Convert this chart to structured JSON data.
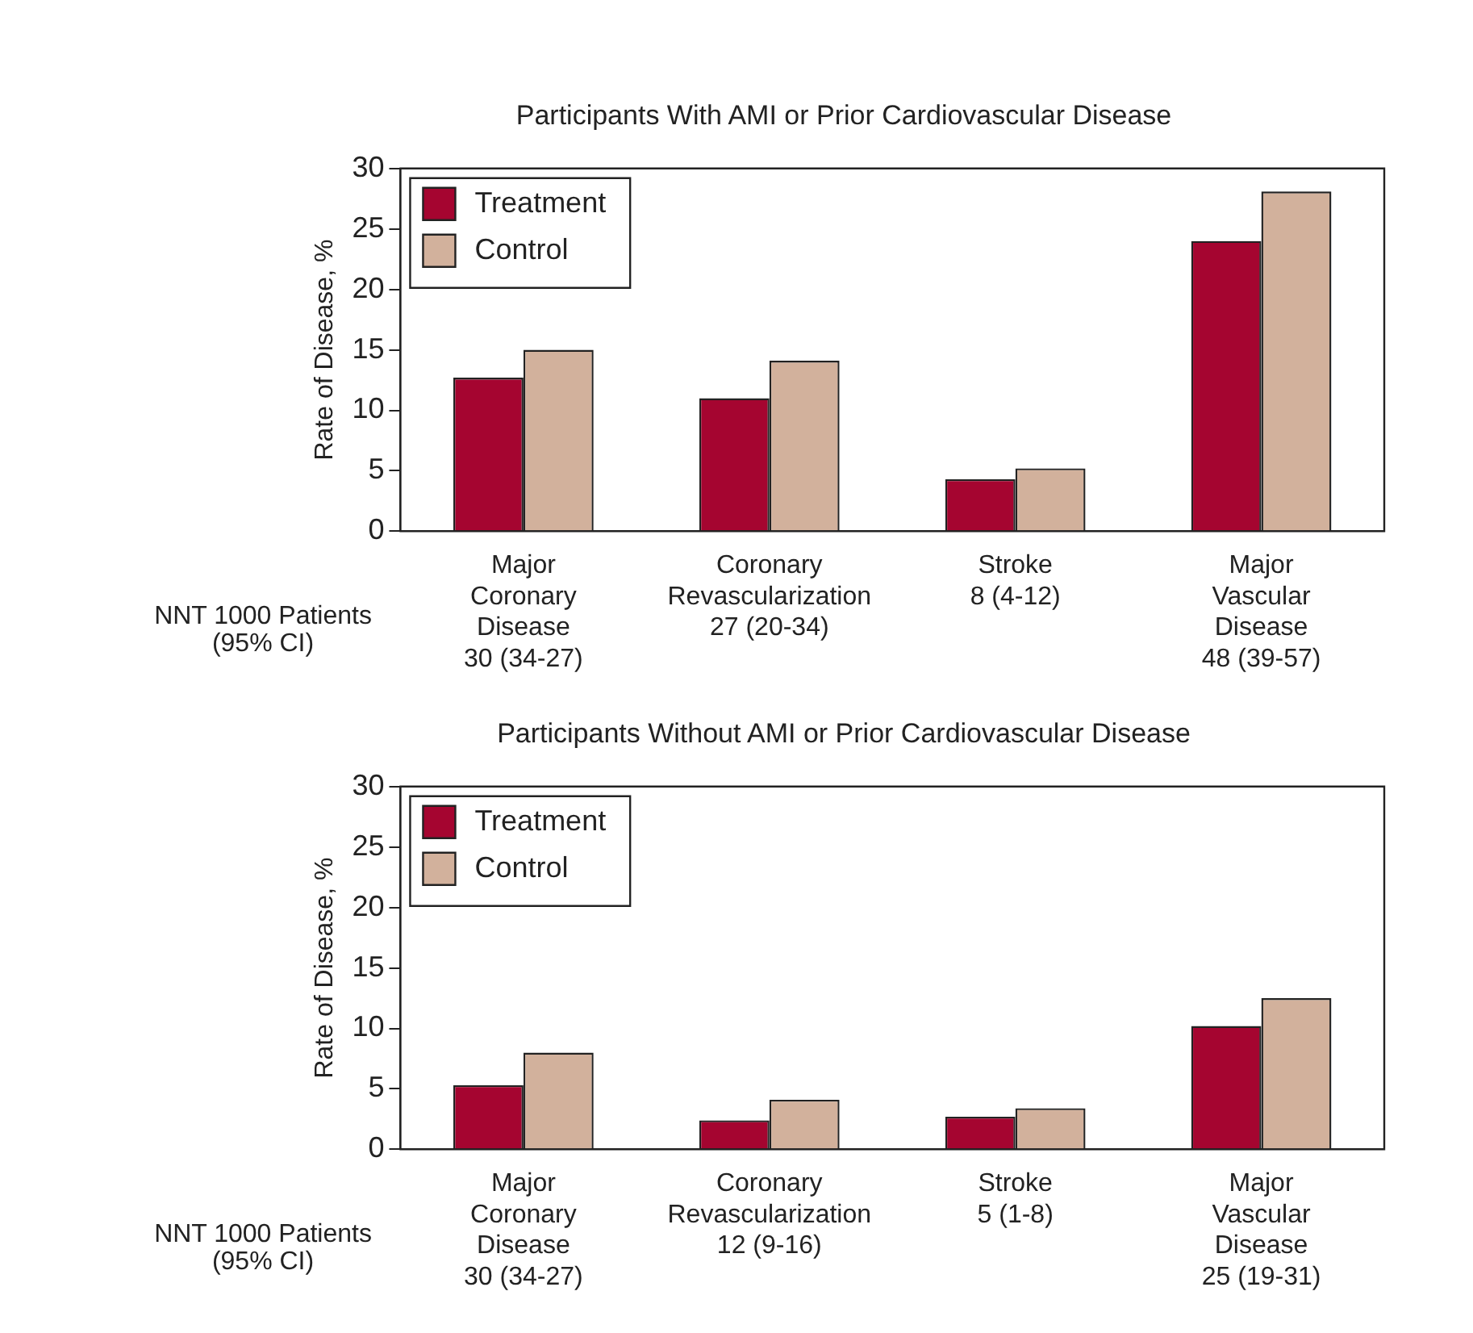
{
  "chart_data": [
    {
      "type": "bar",
      "title": "Participants With AMI or Prior Cardiovascular Disease",
      "ylabel": "Rate of Disease, %",
      "categories": [
        "Major\nCoronary\nDisease\n30 (34-27)",
        "Coronary\nRevascularization\n27 (20-34)",
        "Stroke\n8 (4-12)",
        "Major\nVascular\nDisease\n48 (39-57)"
      ],
      "series": [
        {
          "name": "Treatment",
          "color": "#a50530",
          "values": [
            12.7,
            11.0,
            4.3,
            24.0
          ]
        },
        {
          "name": "Control",
          "color": "#d2b19c",
          "values": [
            15.0,
            14.1,
            5.2,
            28.1
          ]
        }
      ],
      "ylim": [
        0,
        30
      ],
      "yticks": [
        0,
        5,
        10,
        15,
        20,
        25,
        30
      ],
      "legend": "top left",
      "annotations": [
        "NNT 1000 Patients\n(95% CI)"
      ]
    },
    {
      "type": "bar",
      "title": "Participants Without AMI or Prior Cardiovascular Disease",
      "ylabel": "Rate of Disease, %",
      "categories": [
        "Major\nCoronary\nDisease\n30 (34-27)",
        "Coronary\nRevascularization\n12 (9-16)",
        "Stroke\n5 (1-8)",
        "Major\nVascular\nDisease\n25 (19-31)"
      ],
      "series": [
        {
          "name": "Treatment",
          "color": "#a50530",
          "values": [
            5.3,
            2.4,
            2.7,
            10.2
          ]
        },
        {
          "name": "Control",
          "color": "#d2b19c",
          "values": [
            8.0,
            4.1,
            3.4,
            12.5
          ]
        }
      ],
      "ylim": [
        0,
        30
      ],
      "yticks": [
        0,
        5,
        10,
        15,
        20,
        25,
        30
      ],
      "legend": "top left",
      "annotations": [
        "NNT 1000 Patients\n(95% CI)"
      ]
    }
  ]
}
